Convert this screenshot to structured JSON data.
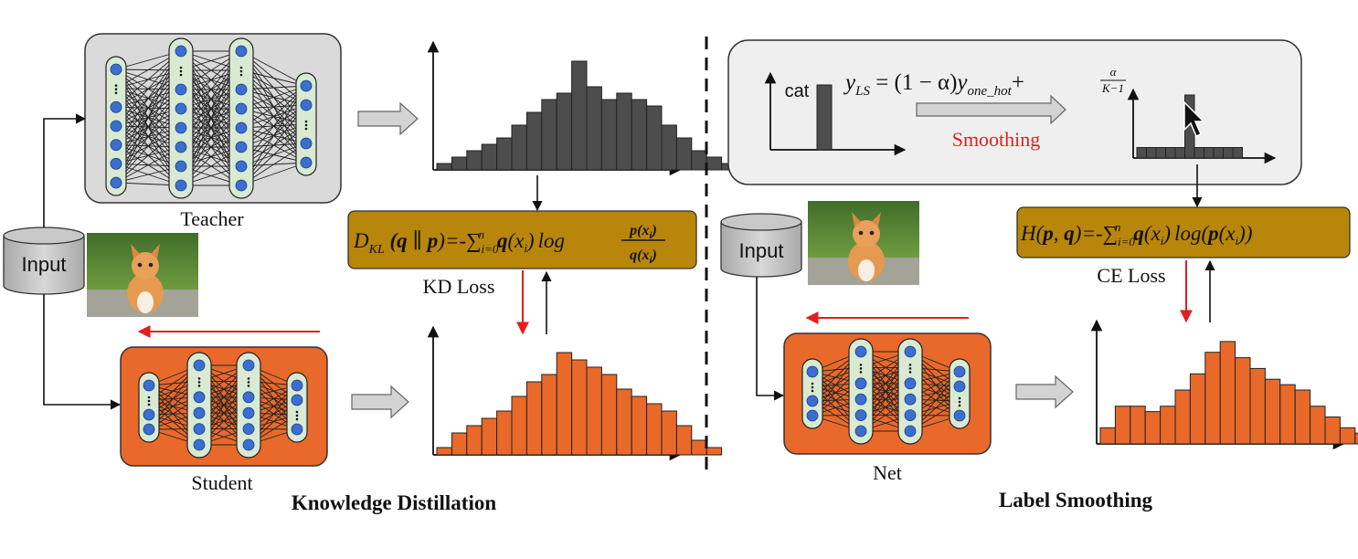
{
  "kd": {
    "teacher_label": "Teacher",
    "student_label": "Student",
    "input_label": "Input",
    "loss_label": "KD Loss",
    "section_title": "Knowledge Distillation",
    "teacher_hist": [
      1,
      2,
      3,
      4,
      5,
      7,
      9,
      11,
      12,
      17,
      13,
      11,
      12,
      11,
      10,
      7,
      5,
      3,
      2,
      1
    ],
    "student_hist": [
      1,
      3,
      4,
      5,
      6,
      8,
      10,
      11,
      14,
      13,
      12,
      11,
      9,
      8,
      7,
      6,
      4,
      2,
      1
    ],
    "loss_formula": {
      "d": "D",
      "kl": "KL",
      "open": " (",
      "q1": "q",
      "par": " ∥ ",
      "p1": "p",
      "close": ")=-",
      "sum": "∑",
      "sub": "i=0",
      "sup": "n",
      "q2": "q",
      "xi": "(x",
      "xisub": "i",
      "xiclose": ")",
      "log": "log",
      "frac_num": "p(x",
      "frac_num_sub": "i",
      "frac_den": "q(x",
      "frac_den_sub": "i",
      "frac_close": ")"
    }
  },
  "ls": {
    "input_label": "Input",
    "net_label": "Net",
    "loss_label": "CE Loss",
    "section_title": "Label Smoothing",
    "cat_label": "cat",
    "smoothing_label": "Smoothing",
    "smoothed_hist": [
      1,
      1,
      1,
      1,
      1,
      6,
      1,
      1,
      1,
      1,
      1
    ],
    "net_hist": [
      3,
      7,
      7,
      6,
      7,
      10,
      13,
      17,
      19,
      16,
      14,
      12,
      11,
      10,
      7,
      5,
      3,
      2,
      1
    ],
    "formula": {
      "y": "y",
      "ysub": "LS",
      "mid": " = (1 − α)",
      "y2": "y",
      "y2sub": "one_hot",
      "plus": "+",
      "alpha": "α",
      "kminus": "K−1"
    },
    "ce_formula": {
      "h": "H(",
      "p": "p",
      "comma": ", ",
      "q": "q",
      "close": ")=-",
      "sum": "∑",
      "sub": "i=0",
      "sup": "n",
      "q2": "q",
      "xi": "(x",
      "xisub": "i",
      "xiclose": ")",
      "log": "log(",
      "p2": "p",
      "xi2": "(x",
      "xi2sub": "i",
      "end": "))"
    }
  },
  "colors": {
    "teacher_bar": "#4d4d4d",
    "student_bar": "#e8692a",
    "loss_box": "#b8860b",
    "node": "#3a6fd1",
    "layer_fill": "#d9ead3",
    "red_arrow": "#e02020",
    "smoothing_text": "#e02020"
  }
}
